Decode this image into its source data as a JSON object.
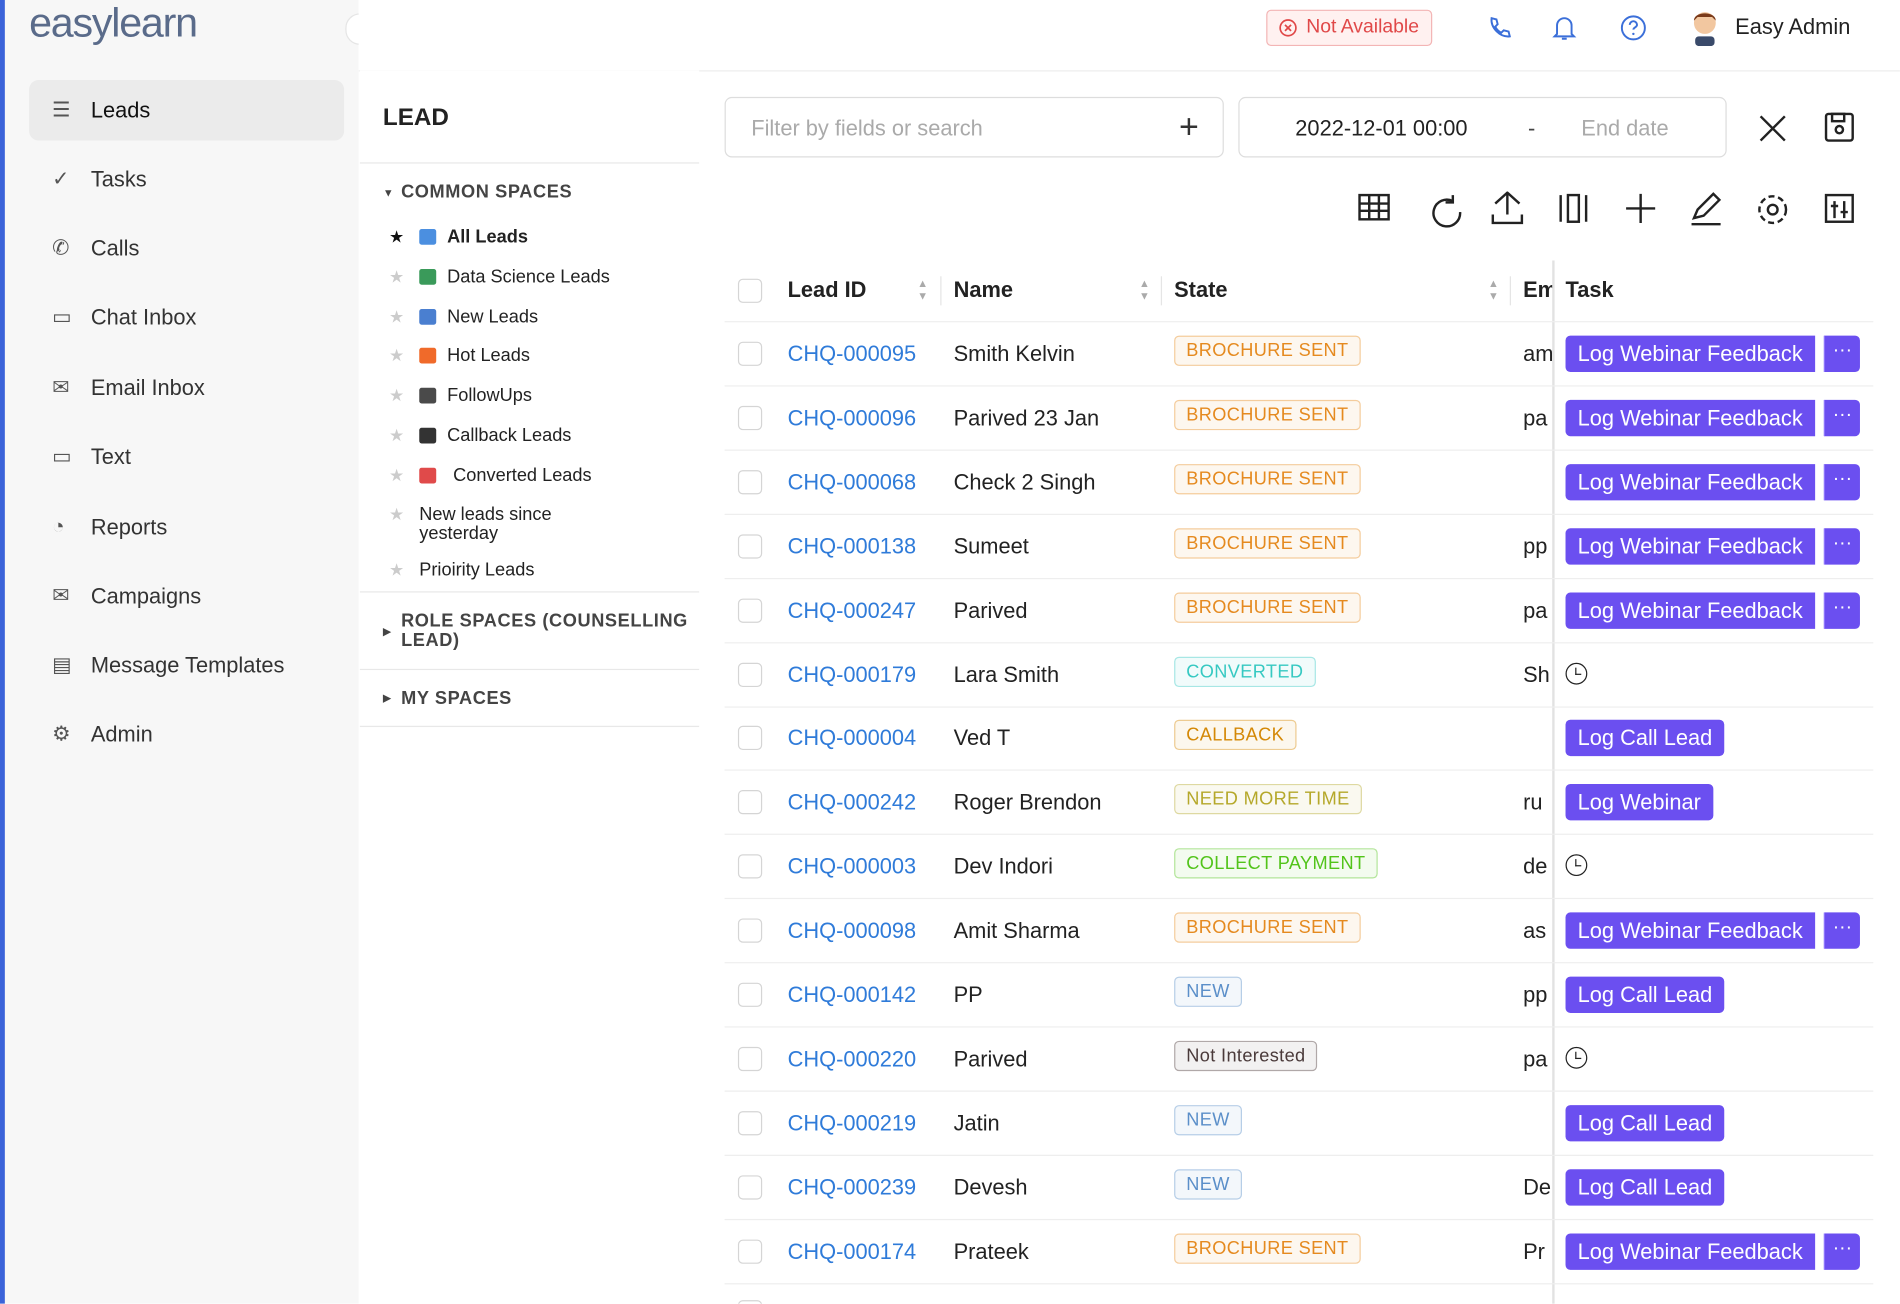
{
  "header": {
    "logo": "easylearn",
    "status": "Not Available",
    "user": "Easy Admin"
  },
  "nav": [
    "Leads",
    "Tasks",
    "Calls",
    "Chat Inbox",
    "Email Inbox",
    "Text",
    "Reports",
    "Campaigns",
    "Message Templates",
    "Admin"
  ],
  "spaces": {
    "title": "LEAD",
    "common_title": "COMMON SPACES",
    "common": [
      "All Leads",
      "Data Science Leads",
      "New Leads",
      "Hot Leads",
      "FollowUps",
      "Callback Leads",
      "Converted Leads",
      "New leads since yesterday",
      "Prioirity Leads"
    ],
    "role_title": "ROLE SPACES (COUNSELLING LEAD)",
    "my_title": "MY SPACES"
  },
  "filter": {
    "placeholder": "Filter by fields or search",
    "start": "2022-12-01 00:00",
    "separator": "-",
    "end": "End date"
  },
  "table": {
    "columns": [
      "Lead ID",
      "Name",
      "State",
      "Em",
      "Task"
    ],
    "rows": [
      {
        "id": "CHQ-000095",
        "name": "Smith Kelvin",
        "state": "BROCHURE SENT",
        "state_color": "#e58a1f",
        "email": "am",
        "task": "Log Webinar Feedback",
        "more": true
      },
      {
        "id": "CHQ-000096",
        "name": "Parived 23 Jan",
        "state": "BROCHURE SENT",
        "state_color": "#e58a1f",
        "email": "pa",
        "task": "Log Webinar Feedback",
        "more": true
      },
      {
        "id": "CHQ-000068",
        "name": "Check 2 Singh",
        "state": "BROCHURE SENT",
        "state_color": "#e58a1f",
        "email": null,
        "task": "Log Webinar Feedback",
        "more": true
      },
      {
        "id": "CHQ-000138",
        "name": "Sumeet",
        "state": "BROCHURE SENT",
        "state_color": "#e58a1f",
        "email": "pp",
        "task": "Log Webinar Feedback",
        "more": true
      },
      {
        "id": "CHQ-000247",
        "name": "Parived",
        "state": "BROCHURE SENT",
        "state_color": "#e58a1f",
        "email": "pa",
        "task": "Log Webinar Feedback",
        "more": true
      },
      {
        "id": "CHQ-000179",
        "name": "Lara Smith",
        "state": "CONVERTED",
        "state_color": "#36c9c2",
        "email": "Sh",
        "task": null,
        "more": false
      },
      {
        "id": "CHQ-000004",
        "name": "Ved T",
        "state": "CALLBACK",
        "state_color": "#d48806",
        "email": null,
        "task": "Log Call Lead",
        "more": false
      },
      {
        "id": "CHQ-000242",
        "name": "Roger Brendon",
        "state": "NEED MORE TIME",
        "state_color": "#b5a82a",
        "email": "ru",
        "task": "Log Webinar",
        "more": false
      },
      {
        "id": "CHQ-000003",
        "name": "Dev Indori",
        "state": "COLLECT PAYMENT",
        "state_color": "#52c41a",
        "email": "de",
        "task": null,
        "more": false
      },
      {
        "id": "CHQ-000098",
        "name": "Amit Sharma",
        "state": "BROCHURE SENT",
        "state_color": "#e58a1f",
        "email": "as",
        "task": "Log Webinar Feedback",
        "more": true
      },
      {
        "id": "CHQ-000142",
        "name": "PP",
        "state": "NEW",
        "state_color": "#5b8fc9",
        "email": "pp",
        "task": "Log Call Lead",
        "more": false
      },
      {
        "id": "CHQ-000220",
        "name": "Parived",
        "state": "Not Interested",
        "state_color": "#4a3a3a",
        "email": "pa",
        "task": null,
        "more": false
      },
      {
        "id": "CHQ-000219",
        "name": "Jatin",
        "state": "NEW",
        "state_color": "#5b8fc9",
        "email": null,
        "task": "Log Call Lead",
        "more": false
      },
      {
        "id": "CHQ-000239",
        "name": "Devesh",
        "state": "NEW",
        "state_color": "#5b8fc9",
        "email": "De",
        "task": "Log Call Lead",
        "more": false
      },
      {
        "id": "CHQ-000174",
        "name": "Prateek",
        "state": "BROCHURE SENT",
        "state_color": "#e58a1f",
        "email": "Pr",
        "task": "Log Webinar Feedback",
        "more": true
      }
    ]
  }
}
